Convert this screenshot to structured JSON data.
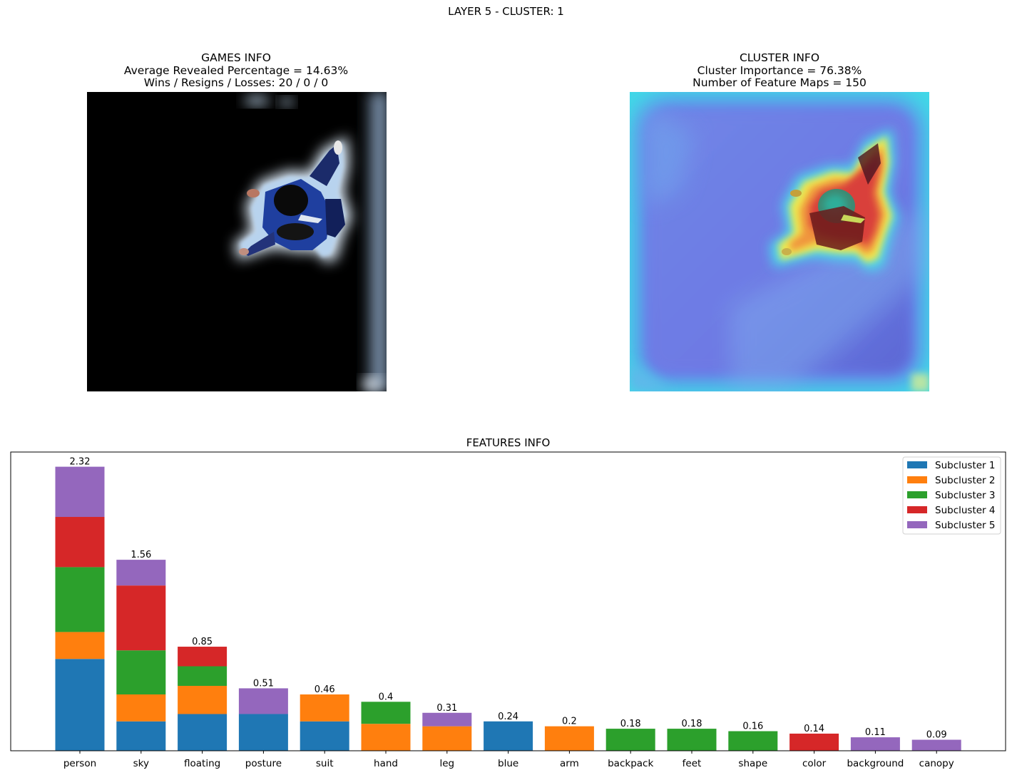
{
  "suptitle": "LAYER 5 - CLUSTER: 1",
  "games_info": {
    "title": "GAMES INFO",
    "line1": "Average Revealed Percentage = 14.63%",
    "line2": "Wins / Resigns / Losses: 20 / 0 / 0"
  },
  "cluster_info": {
    "title": "CLUSTER INFO",
    "line1": "Cluster Importance = 76.38%",
    "line2": "Number of Feature Maps = 150"
  },
  "chart_data": {
    "type": "bar",
    "stacked": true,
    "title": "FEATURES INFO",
    "xlabel": "",
    "ylabel": "",
    "ylim": [
      0,
      2.44
    ],
    "grid": false,
    "legend_position": "top-right",
    "categories": [
      "person",
      "sky",
      "floating",
      "posture",
      "suit",
      "hand",
      "leg",
      "blue",
      "arm",
      "backpack",
      "feet",
      "shape",
      "color",
      "background",
      "canopy"
    ],
    "totals": [
      2.32,
      1.56,
      0.85,
      0.51,
      0.46,
      0.4,
      0.31,
      0.24,
      0.2,
      0.18,
      0.18,
      0.16,
      0.14,
      0.11,
      0.09
    ],
    "total_labels": [
      "2.32",
      "1.56",
      "0.85",
      "0.51",
      "0.46",
      "0.4",
      "0.31",
      "0.24",
      "0.2",
      "0.18",
      "0.18",
      "0.16",
      "0.14",
      "0.11",
      "0.09"
    ],
    "series": [
      {
        "name": "Subcluster 1",
        "color": "#1f77b4",
        "values": [
          0.75,
          0.24,
          0.3,
          0.3,
          0.24,
          0,
          0,
          0.24,
          0,
          0,
          0,
          0,
          0,
          0,
          0
        ]
      },
      {
        "name": "Subcluster 2",
        "color": "#ff7f0e",
        "values": [
          0.22,
          0.22,
          0.23,
          0,
          0.22,
          0.22,
          0.2,
          0,
          0.2,
          0,
          0,
          0,
          0,
          0,
          0
        ]
      },
      {
        "name": "Subcluster 3",
        "color": "#2ca02c",
        "values": [
          0.53,
          0.36,
          0.16,
          0,
          0,
          0.18,
          0,
          0,
          0,
          0.18,
          0.18,
          0.16,
          0,
          0,
          0
        ]
      },
      {
        "name": "Subcluster 4",
        "color": "#d62728",
        "values": [
          0.41,
          0.53,
          0.16,
          0,
          0,
          0,
          0,
          0,
          0,
          0,
          0,
          0,
          0.14,
          0,
          0
        ]
      },
      {
        "name": "Subcluster 5",
        "color": "#9467bd",
        "values": [
          0.41,
          0.21,
          0,
          0.21,
          0,
          0,
          0.11,
          0,
          0,
          0,
          0,
          0,
          0,
          0.11,
          0.09
        ]
      }
    ]
  }
}
